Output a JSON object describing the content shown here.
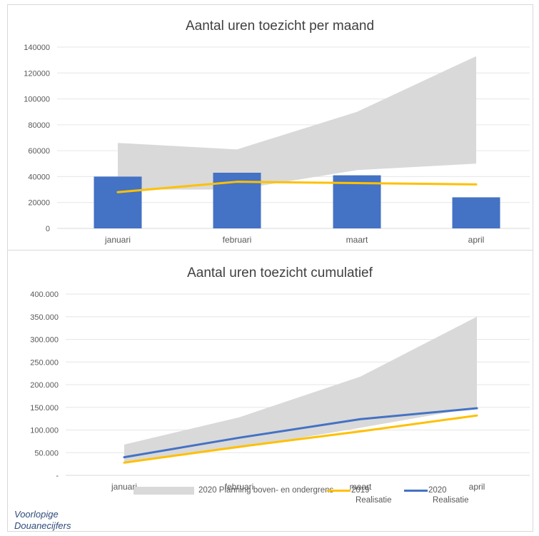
{
  "chart_data": [
    {
      "type": "bar",
      "title": "Aantal uren toezicht per maand",
      "categories": [
        "januari",
        "februari",
        "maart",
        "april"
      ],
      "ylim": [
        0,
        140000
      ],
      "yticks": [
        "0",
        "20000",
        "40000",
        "60000",
        "80000",
        "100000",
        "120000",
        "140000"
      ],
      "ytick_values": [
        0,
        20000,
        40000,
        60000,
        80000,
        100000,
        120000,
        140000
      ],
      "grid": true,
      "series": [
        {
          "name": "2020 Planning boven- en ondergrens",
          "kind": "band",
          "lower": [
            30000,
            30000,
            45000,
            50000
          ],
          "upper": [
            66000,
            61000,
            90000,
            133000
          ],
          "color": "#d9d9d9"
        },
        {
          "name": "2020 Realisatie",
          "kind": "bar",
          "values": [
            40000,
            43000,
            41000,
            24000
          ],
          "color": "#4472c4"
        },
        {
          "name": "2019 Realisatie",
          "kind": "line",
          "values": [
            28000,
            36000,
            35000,
            34000
          ],
          "color": "#ffc000"
        }
      ]
    },
    {
      "type": "line",
      "title": "Aantal uren toezicht cumulatief",
      "categories": [
        "januari",
        "februari",
        "maart",
        "april"
      ],
      "ylim": [
        0,
        400000
      ],
      "yticks": [
        "-",
        "50.000",
        "100.000",
        "150.000",
        "200.000",
        "250.000",
        "300.000",
        "350.000",
        "400.000"
      ],
      "ytick_values": [
        0,
        50000,
        100000,
        150000,
        200000,
        250000,
        300000,
        350000,
        400000
      ],
      "grid": true,
      "series": [
        {
          "name": "2020 Planning boven- en ondergrens",
          "kind": "band",
          "lower": [
            30000,
            60000,
            105000,
            150000
          ],
          "upper": [
            68000,
            128000,
            218000,
            350000
          ],
          "color": "#d9d9d9"
        },
        {
          "name": "2019 Realisatie",
          "kind": "line",
          "values": [
            28000,
            63000,
            97000,
            132000
          ],
          "color": "#ffc000"
        },
        {
          "name": "2020 Realisatie",
          "kind": "line",
          "values": [
            40000,
            83000,
            124000,
            148000
          ],
          "color": "#4472c4"
        }
      ]
    }
  ],
  "legend": {
    "placement": "bottom",
    "items": [
      {
        "label": "2020 Planning boven- en ondergrens",
        "color": "#d9d9d9",
        "kind": "band"
      },
      {
        "label_line1": "2019",
        "label_line2": "Realisatie",
        "color": "#ffc000",
        "kind": "line"
      },
      {
        "label_line1": "2020",
        "label_line2": "Realisatie",
        "color": "#4472c4",
        "kind": "line"
      }
    ]
  },
  "note": {
    "line1": "Voorlopige",
    "line2": "Douanecijfers"
  }
}
